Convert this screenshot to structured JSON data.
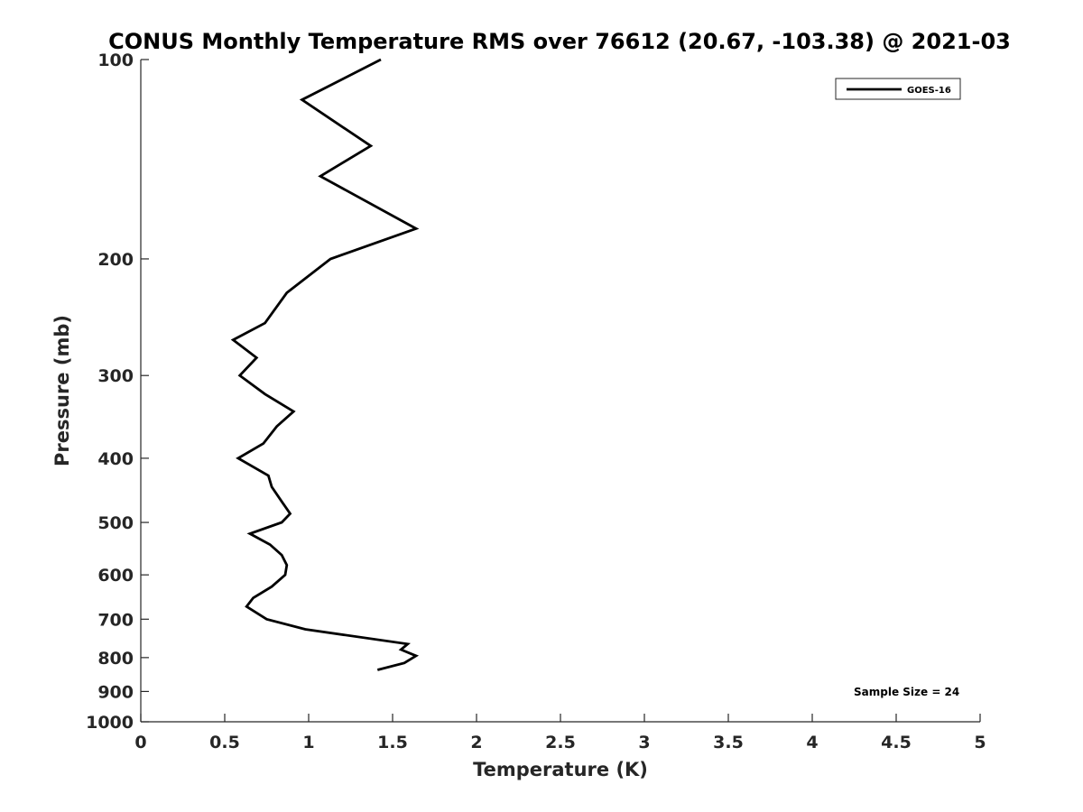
{
  "chart_data": {
    "type": "line",
    "title": "CONUS Monthly Temperature RMS over 76612 (20.67, -103.38) @ 2021-03",
    "xlabel": "Temperature (K)",
    "ylabel": "Pressure (mb)",
    "xlim": [
      0,
      5
    ],
    "ylim": [
      100,
      1000
    ],
    "y_scale": "log",
    "y_reversed": true,
    "grid": false,
    "x_ticks": [
      0,
      0.5,
      1,
      1.5,
      2,
      2.5,
      3,
      3.5,
      4,
      4.5,
      5
    ],
    "x_tick_labels": [
      "0",
      "0.5",
      "1",
      "1.5",
      "2",
      "2.5",
      "3",
      "3.5",
      "4",
      "4.5",
      "5"
    ],
    "y_ticks": [
      100,
      200,
      300,
      400,
      500,
      600,
      700,
      800,
      900,
      1000
    ],
    "y_tick_labels": [
      "100",
      "200",
      "300",
      "400",
      "500",
      "600",
      "700",
      "800",
      "900",
      "1000"
    ],
    "legend": {
      "placement": "top-right",
      "entries": [
        "GOES-16"
      ]
    },
    "annotation": "Sample Size = 24",
    "series": [
      {
        "name": "GOES-16",
        "color": "#000000",
        "points": [
          [
            1.43,
            100
          ],
          [
            0.96,
            115
          ],
          [
            1.37,
            135
          ],
          [
            1.07,
            150
          ],
          [
            1.64,
            180
          ],
          [
            1.13,
            200
          ],
          [
            0.87,
            225
          ],
          [
            0.74,
            250
          ],
          [
            0.55,
            265
          ],
          [
            0.69,
            282
          ],
          [
            0.59,
            300
          ],
          [
            0.74,
            320
          ],
          [
            0.91,
            340
          ],
          [
            0.81,
            358
          ],
          [
            0.73,
            380
          ],
          [
            0.58,
            400
          ],
          [
            0.76,
            425
          ],
          [
            0.78,
            442
          ],
          [
            0.84,
            465
          ],
          [
            0.89,
            485
          ],
          [
            0.84,
            500
          ],
          [
            0.65,
            520
          ],
          [
            0.77,
            540
          ],
          [
            0.84,
            560
          ],
          [
            0.87,
            580
          ],
          [
            0.86,
            600
          ],
          [
            0.78,
            625
          ],
          [
            0.67,
            650
          ],
          [
            0.63,
            670
          ],
          [
            0.75,
            700
          ],
          [
            0.98,
            725
          ],
          [
            1.59,
            763
          ],
          [
            1.55,
            778
          ],
          [
            1.64,
            795
          ],
          [
            1.57,
            815
          ],
          [
            1.41,
            835
          ]
        ]
      }
    ]
  }
}
